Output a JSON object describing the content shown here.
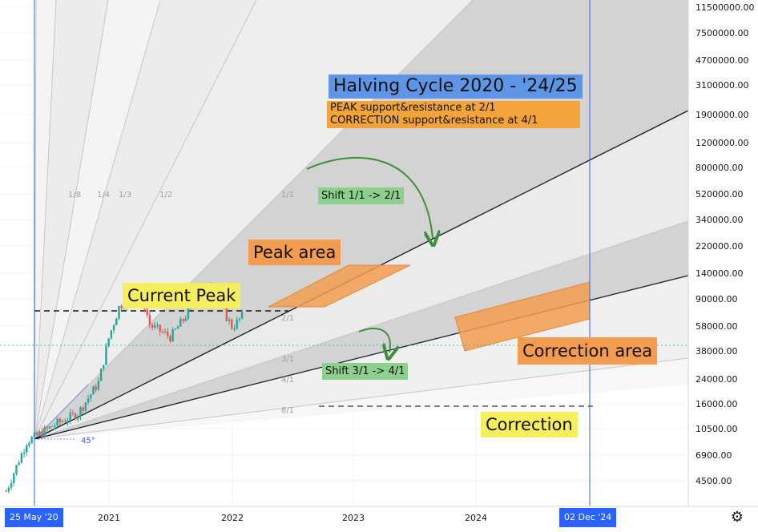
{
  "chart_data": {
    "type": "line",
    "instrument_style": "candlestick",
    "y_scale": "log",
    "y_ticks": [
      "11500000.00",
      "7500000.00",
      "4700000.00",
      "3100000.00",
      "1900000.00",
      "1200000.00",
      "800000.00",
      "520000.00",
      "340000.00",
      "220000.00",
      "140000.00",
      "90000.00",
      "58000.00",
      "38000.00",
      "24000.00",
      "16000.00",
      "10500.00",
      "6900.00",
      "4500.00"
    ],
    "x_ticks": [
      "2021",
      "2022",
      "2023",
      "2024"
    ],
    "x_markers": [
      "25 May '20",
      "02 Dec '24"
    ],
    "price_series": {
      "x": [
        "2020-03",
        "2020-05",
        "2020-08",
        "2020-10",
        "2020-12",
        "2021-01",
        "2021-02",
        "2021-04",
        "2021-05",
        "2021-07",
        "2021-09",
        "2021-11",
        "2021-12",
        "2022-01",
        "2022-02"
      ],
      "y": [
        5000,
        9200,
        11500,
        13000,
        19000,
        33000,
        48000,
        60000,
        38000,
        33000,
        47000,
        66000,
        47000,
        37000,
        43000
      ]
    },
    "gann_fan_labels": [
      "1/8",
      "1/4",
      "1/3",
      "1/2",
      "1/1",
      "2/1",
      "3/1",
      "4/1",
      "8/1"
    ],
    "origin_angle_label": "45°",
    "colors": {
      "up": "#26a69a",
      "down": "#ef5350",
      "marker": "#2962ff",
      "shade": "#bdbdbd",
      "orange": "#f39c4f"
    }
  },
  "annotations": {
    "title": "Halving Cycle 2020 - '24/25",
    "subtitle_line1": "PEAK support&resistance at 2/1",
    "subtitle_line2": "CORRECTION support&resistance at 4/1",
    "shift1": "Shift 1/1 -> 2/1",
    "shift2": "Shift 3/1 -> 4/1",
    "peak_area": "Peak area",
    "current_peak": "Current Peak",
    "correction_area": "Correction area",
    "correction": "Correction"
  },
  "toolbar": {
    "settings_icon": "gear-icon"
  }
}
